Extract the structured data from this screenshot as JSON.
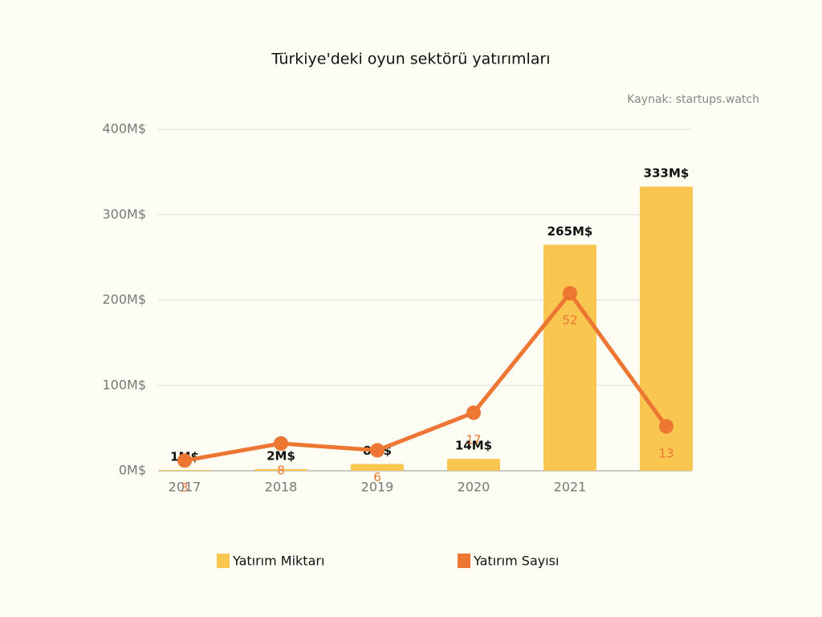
{
  "chart_data": {
    "type": "bar-line",
    "title": "Türkiye'deki oyun sektörü yatırımları",
    "source": "Kaynak: startups.watch",
    "categories": [
      "2017",
      "2018",
      "2019",
      "2020",
      "2021",
      null
    ],
    "series": [
      {
        "name": "Yatırım Miktarı",
        "type": "bar",
        "color": "#f9c750",
        "values": [
          1,
          2,
          8,
          14,
          265,
          333
        ],
        "value_labels": [
          "1M$",
          "2M$",
          "8M$",
          "14M$",
          "265M$",
          "333M$"
        ]
      },
      {
        "name": "Yatırım Sayısı",
        "type": "line",
        "axis": "y2",
        "color": "#ed7633",
        "values": [
          3,
          8,
          6,
          17,
          52,
          13
        ]
      }
    ],
    "ylim": [
      0,
      400
    ],
    "yticks": [
      {
        "value": 0,
        "label": "0M$"
      },
      {
        "value": 100,
        "label": "100M$"
      },
      {
        "value": 200,
        "label": "200M$"
      },
      {
        "value": 300,
        "label": "300M$"
      },
      {
        "value": 400,
        "label": "400M$"
      }
    ],
    "y2lim": [
      0,
      100
    ],
    "grid": true
  }
}
